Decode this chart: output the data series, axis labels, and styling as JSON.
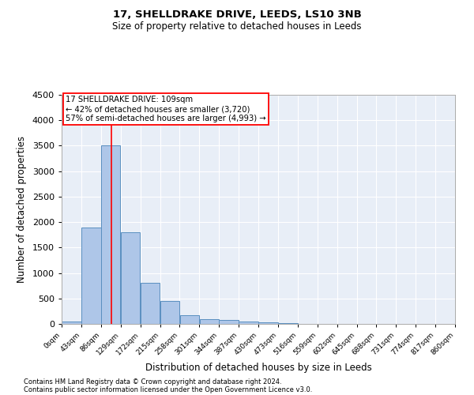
{
  "title1": "17, SHELLDRAKE DRIVE, LEEDS, LS10 3NB",
  "title2": "Size of property relative to detached houses in Leeds",
  "xlabel": "Distribution of detached houses by size in Leeds",
  "ylabel": "Number of detached properties",
  "footnote1": "Contains HM Land Registry data © Crown copyright and database right 2024.",
  "footnote2": "Contains public sector information licensed under the Open Government Licence v3.0.",
  "annotation_line1": "17 SHELLDRAKE DRIVE: 109sqm",
  "annotation_line2": "← 42% of detached houses are smaller (3,720)",
  "annotation_line3": "57% of semi-detached houses are larger (4,993) →",
  "bar_edges": [
    0,
    43,
    86,
    129,
    172,
    215,
    258,
    301,
    344,
    387,
    430,
    473,
    516,
    559,
    602,
    645,
    688,
    731,
    774,
    817,
    860
  ],
  "bar_heights": [
    50,
    1900,
    3500,
    1800,
    800,
    450,
    175,
    100,
    75,
    50,
    30,
    10,
    5,
    3,
    2,
    1,
    1,
    0,
    0,
    0
  ],
  "bar_color": "#aec6e8",
  "bar_edgecolor": "#5a8fc0",
  "red_line_x": 109,
  "ylim": [
    0,
    4500
  ],
  "background_color": "#e8eef7",
  "grid_color": "#ffffff",
  "tick_labels": [
    "0sqm",
    "43sqm",
    "86sqm",
    "129sqm",
    "172sqm",
    "215sqm",
    "258sqm",
    "301sqm",
    "344sqm",
    "387sqm",
    "430sqm",
    "473sqm",
    "516sqm",
    "559sqm",
    "602sqm",
    "645sqm",
    "688sqm",
    "731sqm",
    "774sqm",
    "817sqm",
    "860sqm"
  ]
}
